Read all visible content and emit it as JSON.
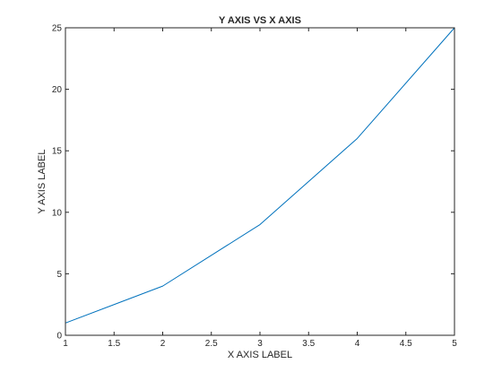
{
  "chart_data": {
    "type": "line",
    "title": "Y AXIS VS X AXIS",
    "xlabel": "X AXIS LABEL",
    "ylabel": "Y AXIS LABEL",
    "xlim": [
      1,
      5
    ],
    "ylim": [
      0,
      25
    ],
    "x_ticks": [
      1,
      1.5,
      2,
      2.5,
      3,
      3.5,
      4,
      4.5,
      5
    ],
    "x_tick_labels": [
      "1",
      "1.5",
      "2",
      "2.5",
      "3",
      "3.5",
      "4",
      "4.5",
      "5"
    ],
    "y_ticks": [
      0,
      5,
      10,
      15,
      20,
      25
    ],
    "y_tick_labels": [
      "0",
      "5",
      "10",
      "15",
      "20",
      "25"
    ],
    "grid": false,
    "box": true,
    "series": [
      {
        "x": [
          1,
          2,
          3,
          4,
          5
        ],
        "y": [
          1,
          4,
          9,
          16,
          25
        ],
        "color": "#0072bd"
      }
    ]
  }
}
